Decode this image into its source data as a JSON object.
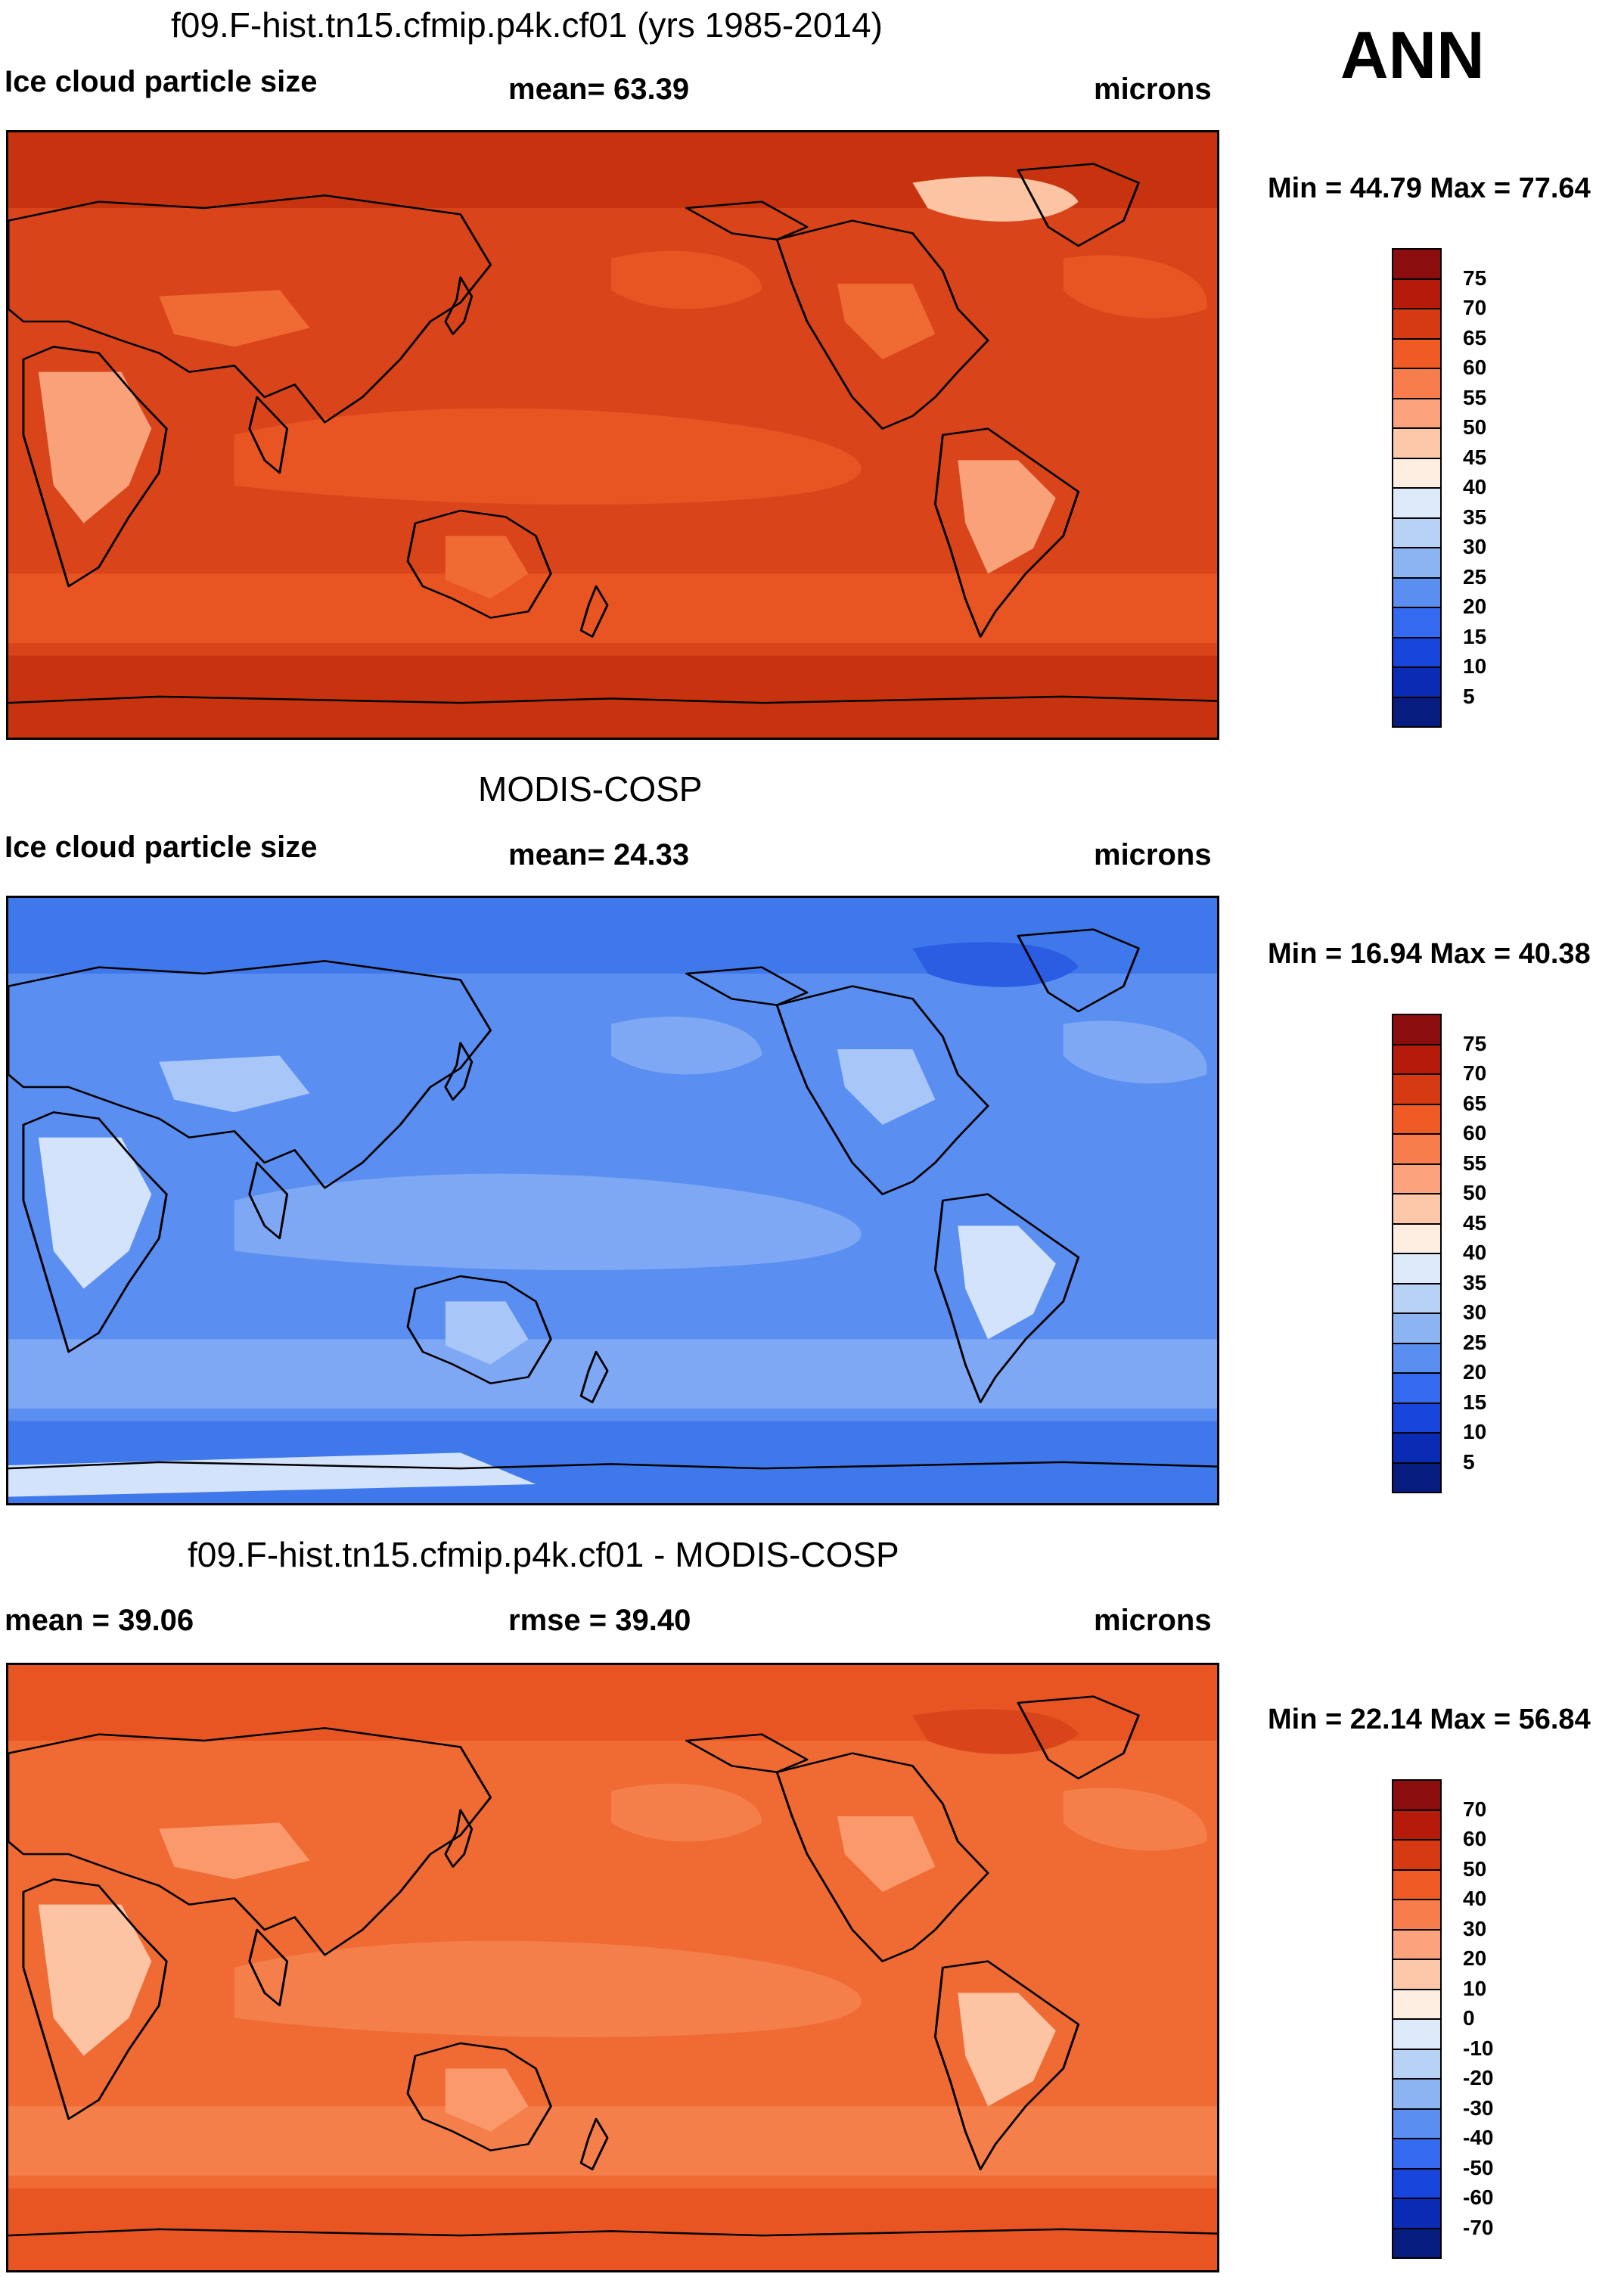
{
  "season": "ANN",
  "panels": [
    {
      "title": "f09.F-hist.tn15.cfmip.p4k.cf01 (yrs 1985-2014)",
      "left_label": "Ice cloud particle size",
      "center_label": "mean=  63.39",
      "right_label": "microns",
      "min_max": "Min =  44.79 Max =  77.64",
      "colorbar": {
        "labels": [
          "75",
          "70",
          "65",
          "60",
          "55",
          "50",
          "45",
          "40",
          "35",
          "30",
          "25",
          "20",
          "15",
          "10",
          "5"
        ],
        "colors": [
          "#8b0d0d",
          "#b51a0a",
          "#d63a12",
          "#f05a25",
          "#f77e4c",
          "#fba37c",
          "#fdc8a9",
          "#fdeee1",
          "#dceaf9",
          "#b8d2f5",
          "#8cb3f2",
          "#5a8ef0",
          "#336af0",
          "#1846dc",
          "#0a2cb4",
          "#061c7f"
        ]
      },
      "map_palette": [
        "#c8330f",
        "#d9441a",
        "#e85523",
        "#f06a34",
        "#f9a27a",
        "#fcc4a3"
      ]
    },
    {
      "title": "MODIS-COSP",
      "left_label": "Ice cloud particle size",
      "center_label": "mean=  24.33",
      "right_label": "microns",
      "min_max": "Min =  16.94 Max =  40.38",
      "colorbar": {
        "labels": [
          "75",
          "70",
          "65",
          "60",
          "55",
          "50",
          "45",
          "40",
          "35",
          "30",
          "25",
          "20",
          "15",
          "10",
          "5"
        ],
        "colors": [
          "#8b0d0d",
          "#b51a0a",
          "#d63a12",
          "#f05a25",
          "#f77e4c",
          "#fba37c",
          "#fdc8a9",
          "#fdeee1",
          "#dceaf9",
          "#b8d2f5",
          "#8cb3f2",
          "#5a8ef0",
          "#336af0",
          "#1846dc",
          "#0a2cb4",
          "#061c7f"
        ]
      },
      "map_palette": [
        "#3f78ea",
        "#5a8ef0",
        "#7ea8f4",
        "#a8c6f7",
        "#d3e3fb",
        "#2b5de2"
      ]
    },
    {
      "title": "f09.F-hist.tn15.cfmip.p4k.cf01 - MODIS-COSP",
      "left_label": "mean =  39.06",
      "center_label": "rmse =  39.40",
      "right_label": "microns",
      "min_max": "Min =  22.14 Max =  56.84",
      "colorbar": {
        "labels": [
          "70",
          "60",
          "50",
          "40",
          "30",
          "20",
          "10",
          "0",
          "-10",
          "-20",
          "-30",
          "-40",
          "-50",
          "-60",
          "-70"
        ],
        "colors": [
          "#8b0d0d",
          "#b51a0a",
          "#d63a12",
          "#f05a25",
          "#f77e4c",
          "#fba37c",
          "#fdc8a9",
          "#fdeee1",
          "#dceaf9",
          "#b8d2f5",
          "#8cb3f2",
          "#5a8ef0",
          "#336af0",
          "#1846dc",
          "#0a2cb4",
          "#061c7f"
        ]
      },
      "map_palette": [
        "#e85523",
        "#f06a34",
        "#f57f4a",
        "#fa9a6c",
        "#fcc4a3",
        "#d9441a"
      ]
    }
  ]
}
